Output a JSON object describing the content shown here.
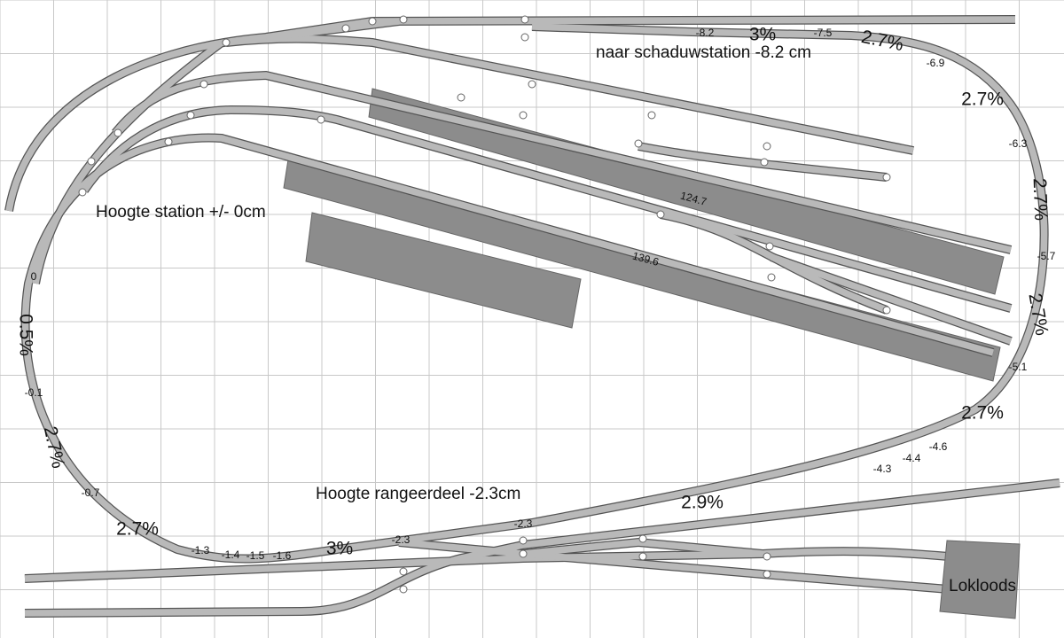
{
  "labels": {
    "station": "Hoogte station +/- 0cm",
    "shadow": "naar schaduwstation -8.2 cm",
    "yard": "Hoogte rangeerdeel -2.3cm",
    "shed": "Lokloods"
  },
  "grades": [
    "3%",
    "2.7%",
    "2.7%",
    "2.7%",
    "2.7%",
    "2.7%",
    "2.9%",
    "3%",
    "2.7%",
    "2.7%",
    "0.5%"
  ],
  "heights": [
    "-8.2",
    "-7.5",
    "-6.9",
    "-6.3",
    "-5.7",
    "-5.1",
    "-4.6",
    "-4.4",
    "-4.3",
    "-2.3",
    "-2.3",
    "-1.6",
    "-1.5",
    "-1.4",
    "-1.3",
    "-0.7",
    "-0.1",
    "0"
  ],
  "lengths": [
    "124.7",
    "139.6"
  ]
}
